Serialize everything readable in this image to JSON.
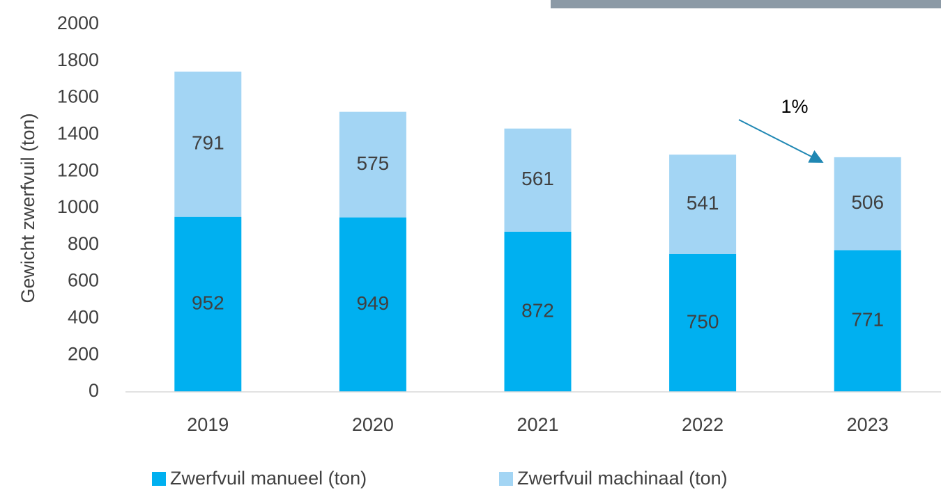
{
  "chart_data": {
    "type": "stacked_bar",
    "y_label": "Gewicht zwerfvuil (ton)",
    "annotation": "1%",
    "categories": [
      "2019",
      "2020",
      "2021",
      "2022",
      "2023"
    ],
    "series": [
      {
        "name": "Zwerfvuil manueel (ton)",
        "color": "#00b0f0",
        "values": [
          952,
          949,
          872,
          750,
          771
        ]
      },
      {
        "name": "Zwerfvuil machinaal (ton)",
        "color": "#a3d5f4",
        "values": [
          791,
          575,
          561,
          541,
          506
        ]
      }
    ],
    "ylim": [
      0,
      2000
    ],
    "yticks": [
      0,
      200,
      400,
      600,
      800,
      1000,
      1200,
      1400,
      1600,
      1800,
      2000
    ],
    "legend": "bottom"
  }
}
